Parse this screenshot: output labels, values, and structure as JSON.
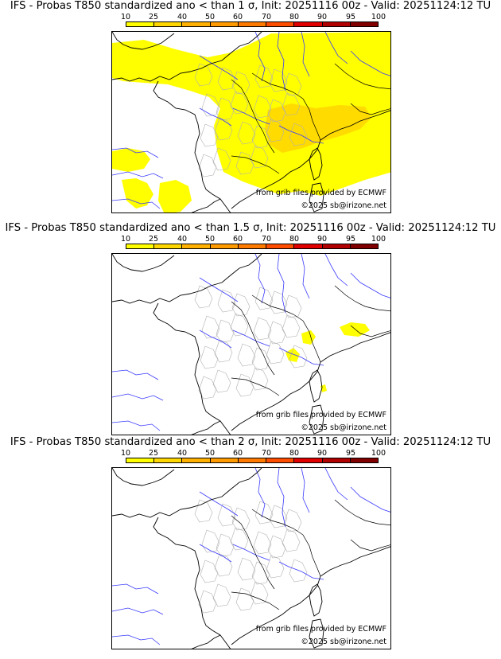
{
  "colorbar": {
    "labels": [
      "10",
      "25",
      "40",
      "50",
      "60",
      "70",
      "80",
      "90",
      "95",
      "100"
    ],
    "colors": [
      "#ffff00",
      "#ffd700",
      "#ffb000",
      "#ff9a00",
      "#ff7a00",
      "#ff4d00",
      "#e00000",
      "#b00000",
      "#800000",
      "#4a0000"
    ]
  },
  "panels": [
    {
      "title": "IFS - Probas T850  standardized ano < than 1 σ, Init: 20251116 00z - Valid: 20251124:12 TU",
      "coverage": "extensive",
      "credit_grib": "from grib files provided by ECMWF",
      "credit_copy": "©2025 sb@irizone.net"
    },
    {
      "title": "IFS - Probas T850  standardized ano < than 1.5 σ, Init: 20251116 00z - Valid: 20251124:12 TU",
      "coverage": "sparse",
      "credit_grib": "from grib files provided by ECMWF",
      "credit_copy": "©2025 sb@irizone.net"
    },
    {
      "title": "IFS - Probas T850  standardized ano < than 2 σ, Init: 20251116 00z - Valid: 20251124:12 TU",
      "coverage": "none",
      "credit_grib": "from grib files provided by ECMWF",
      "credit_copy": "©2025 sb@irizone.net"
    }
  ]
}
